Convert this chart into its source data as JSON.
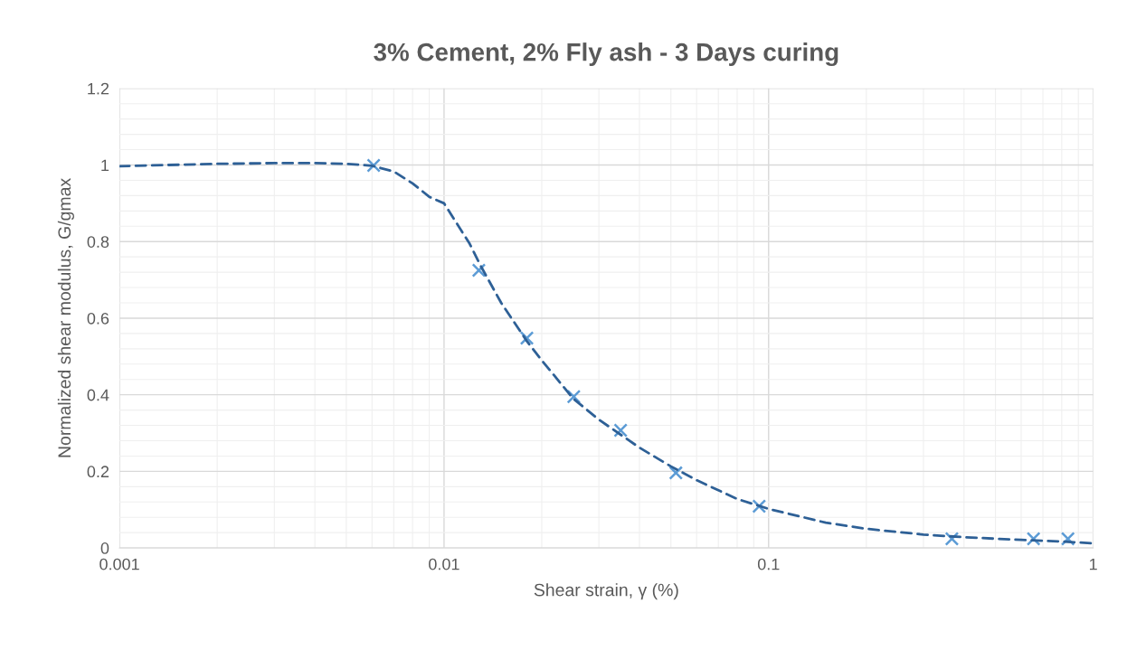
{
  "chart_data": {
    "type": "scatter",
    "title": "3% Cement, 2% Fly ash - 3 Days curing",
    "xlabel": "Shear strain, γ (%)",
    "ylabel": "Normalized shear modulus, G/gmax",
    "log": "x",
    "xlim": [
      0.001,
      1
    ],
    "xticks": [
      0.001,
      0.01,
      0.1,
      1
    ],
    "ylim": [
      0,
      1.2
    ],
    "yticks": [
      0,
      0.2,
      0.4,
      0.6,
      0.8,
      1,
      1.2
    ],
    "grid": true,
    "series": [
      {
        "color": "#5b9bd5",
        "marker": "cross",
        "x": [
          0.00607,
          0.0128,
          0.018,
          0.0251,
          0.035,
          0.0518,
          0.0935,
          0.367,
          0.655,
          0.836
        ],
        "values": [
          0.999,
          0.725,
          0.548,
          0.395,
          0.307,
          0.196,
          0.109,
          0.024,
          0.024,
          0.024
        ]
      },
      {
        "type": "line",
        "color": "#2e6096",
        "line_style": "dashed",
        "marker": "none",
        "x": [
          0.001,
          0.002,
          0.003,
          0.004,
          0.005,
          0.006,
          0.007,
          0.008,
          0.009,
          0.01,
          0.012,
          0.013,
          0.015,
          0.018,
          0.02,
          0.025,
          0.03,
          0.04,
          0.05,
          0.06,
          0.08,
          0.1,
          0.15,
          0.2,
          0.3,
          0.4,
          0.6,
          0.8,
          1.0
        ],
        "values": [
          0.997,
          1.003,
          1.005,
          1.005,
          1.003,
          0.998,
          0.983,
          0.952,
          0.917,
          0.9,
          0.794,
          0.735,
          0.64,
          0.54,
          0.49,
          0.39,
          0.335,
          0.262,
          0.213,
          0.177,
          0.128,
          0.102,
          0.066,
          0.05,
          0.035,
          0.028,
          0.021,
          0.017,
          0.012
        ]
      }
    ]
  }
}
